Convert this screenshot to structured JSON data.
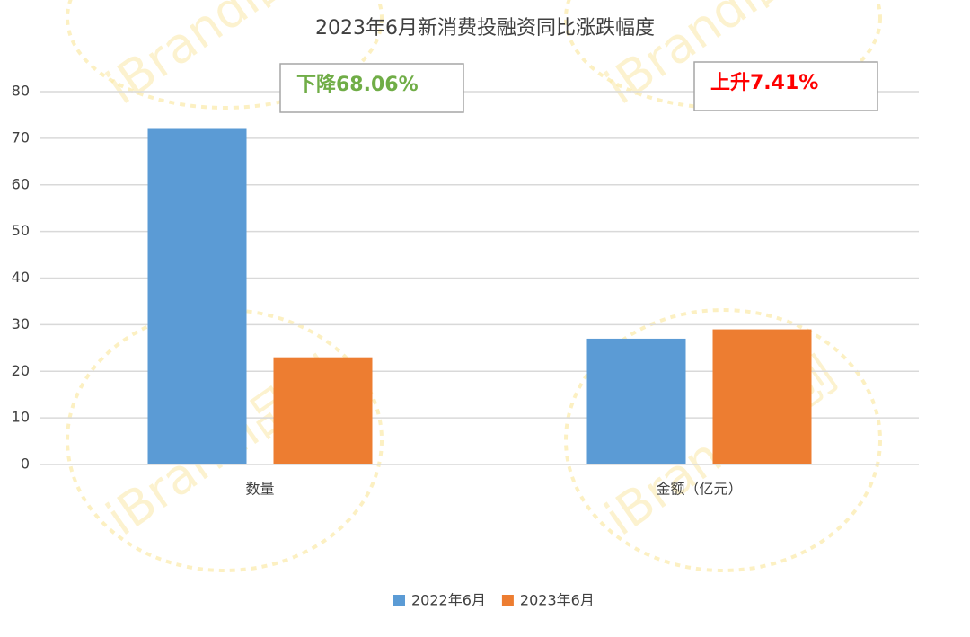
{
  "chart_data": {
    "type": "bar",
    "title": "2023年6月新消费投融资同比涨跌幅度",
    "categories": [
      "数量",
      "金额（亿元）"
    ],
    "series": [
      {
        "name": "2022年6月",
        "color": "#5b9bd5",
        "values": [
          72,
          27
        ]
      },
      {
        "name": "2023年6月",
        "color": "#ed7d31",
        "values": [
          23,
          29
        ]
      }
    ],
    "ylim": [
      0,
      80
    ],
    "yticks": [
      0,
      10,
      20,
      30,
      40,
      50,
      60,
      70,
      80
    ],
    "grid": true,
    "annotations": [
      {
        "text": "下降68.06%",
        "color": "#70ad47"
      },
      {
        "text": "上升7.41%",
        "color": "#ff0000"
      }
    ],
    "legend": "bottom",
    "watermark": "iBrandi品创"
  }
}
